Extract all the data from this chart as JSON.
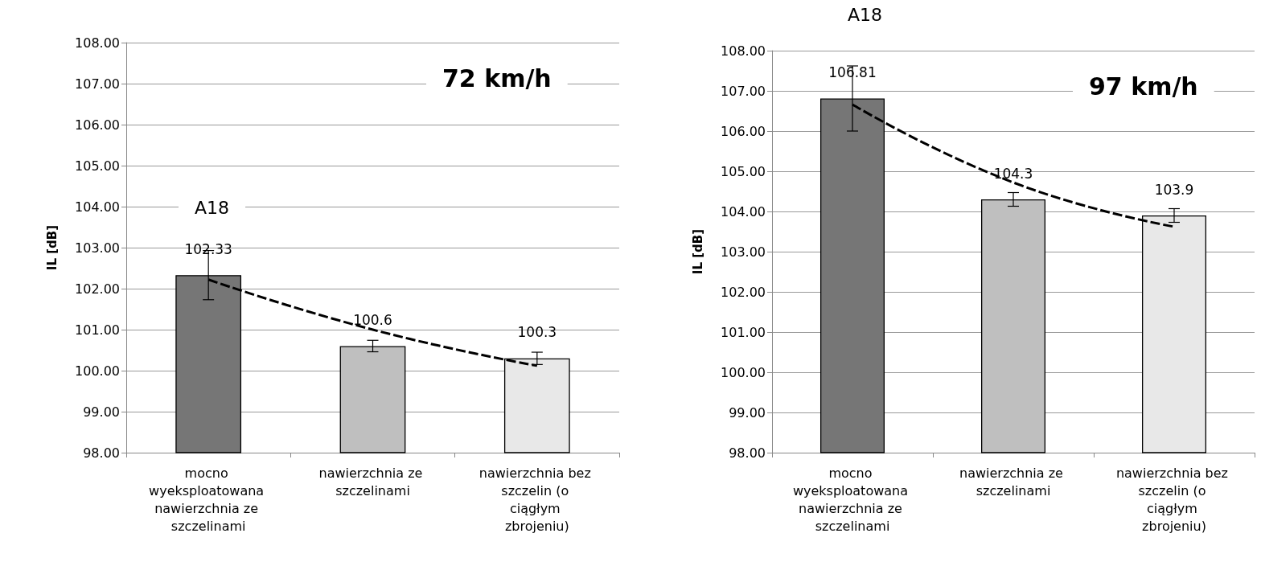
{
  "chart_data": [
    {
      "type": "bar",
      "ylabel": "IL [dB]",
      "annotations": [
        "A18",
        "72 km/h"
      ],
      "categories": [
        "mocno wyeksploatowana nawierzchnia ze szczelinami",
        "nawierzchnia ze szczelinami",
        "nawierzchnia bez szczelin (o ciągłym zbrojeniu)"
      ],
      "series": [
        {
          "values": [
            102.33,
            100.6,
            100.3
          ],
          "colors": [
            "#767676",
            "#bfbfbf",
            "#e8e8e8"
          ],
          "errors": [
            0.6,
            0.14,
            0.15
          ],
          "data_labels": true
        },
        {
          "type": "line",
          "values": [
            102.22,
            101.0,
            100.12
          ],
          "color": "#000000",
          "line_style": "dashed",
          "marker": "none"
        }
      ],
      "ylim": [
        98,
        108
      ],
      "yticks": [
        {
          "value": 98,
          "label": "98.00"
        },
        {
          "value": 99,
          "label": "99.00"
        },
        {
          "value": 100,
          "label": "100.00"
        },
        {
          "value": 101,
          "label": "101.00"
        },
        {
          "value": 102,
          "label": "102.00"
        },
        {
          "value": 103,
          "label": "103.00"
        },
        {
          "value": 104,
          "label": "104.00"
        },
        {
          "value": 105,
          "label": "105.00"
        },
        {
          "value": 106,
          "label": "106.00"
        },
        {
          "value": 107,
          "label": "107.00"
        },
        {
          "value": 108,
          "label": "108.00"
        }
      ],
      "grid": "y"
    },
    {
      "type": "bar",
      "ylabel": "IL [dB]",
      "annotations": [
        "A18",
        "97 km/h"
      ],
      "categories": [
        "mocno wyeksploatowana nawierzchnia ze szczelinami",
        "nawierzchnia ze szczelinami",
        "nawierzchnia bez szczelin (o ciągłym zbrojeniu)"
      ],
      "series": [
        {
          "values": [
            106.81,
            104.3,
            103.9
          ],
          "colors": [
            "#767676",
            "#bfbfbf",
            "#e8e8e8"
          ],
          "errors": [
            0.81,
            0.17,
            0.17
          ],
          "data_labels": true
        },
        {
          "type": "line",
          "values": [
            106.66,
            104.72,
            103.62
          ],
          "color": "#000000",
          "line_style": "dashed",
          "marker": "none"
        }
      ],
      "ylim": [
        98,
        108
      ],
      "yticks": [
        {
          "value": 98,
          "label": "98.00"
        },
        {
          "value": 99,
          "label": "99.00"
        },
        {
          "value": 100,
          "label": "100.00"
        },
        {
          "value": 101,
          "label": "101.00"
        },
        {
          "value": 102,
          "label": "102.00"
        },
        {
          "value": 103,
          "label": "103.00"
        },
        {
          "value": 104,
          "label": "104.00"
        },
        {
          "value": 105,
          "label": "105.00"
        },
        {
          "value": 106,
          "label": "106.00"
        },
        {
          "value": 107,
          "label": "107.00"
        },
        {
          "value": 108,
          "label": "108.00"
        }
      ],
      "grid": "y"
    }
  ]
}
